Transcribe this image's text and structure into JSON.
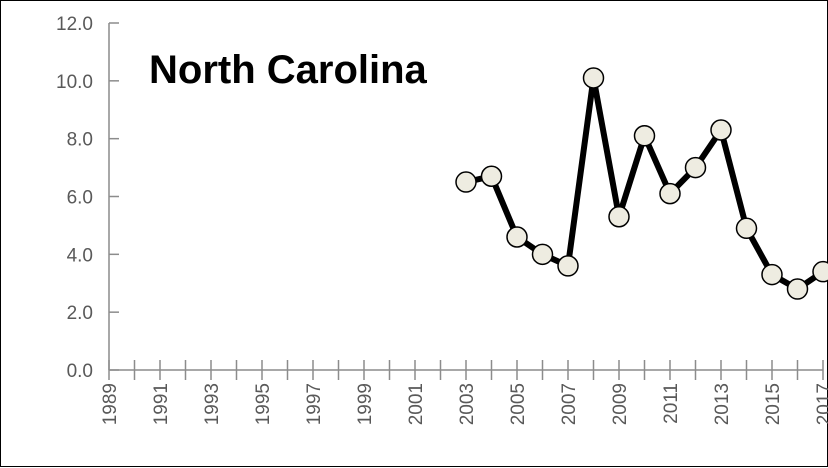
{
  "chart_data": {
    "type": "line",
    "title": "North Carolina",
    "xlabel": "",
    "ylabel": "",
    "ylim": [
      0,
      12
    ],
    "yticks": [
      "0.0",
      "2.0",
      "4.0",
      "6.0",
      "8.0",
      "10.0",
      "12.0"
    ],
    "xlim": [
      1989,
      2017
    ],
    "xticks": [
      "1989",
      "1991",
      "1993",
      "1995",
      "1997",
      "1999",
      "2001",
      "2003",
      "2005",
      "2007",
      "2009",
      "2011",
      "2013",
      "2015",
      "2017"
    ],
    "grid": false,
    "legend": "none",
    "line_color": "#000000",
    "marker_fill": "#eeece1",
    "series": [
      {
        "x": [
          2003,
          2004,
          2005,
          2006,
          2007,
          2008,
          2009,
          2010,
          2011,
          2012,
          2013,
          2014,
          2015,
          2016,
          2017
        ],
        "values": [
          6.5,
          6.7,
          4.6,
          4.0,
          3.6,
          10.1,
          5.3,
          8.1,
          6.1,
          7.0,
          8.3,
          4.9,
          3.3,
          2.8,
          3.4
        ]
      }
    ]
  }
}
